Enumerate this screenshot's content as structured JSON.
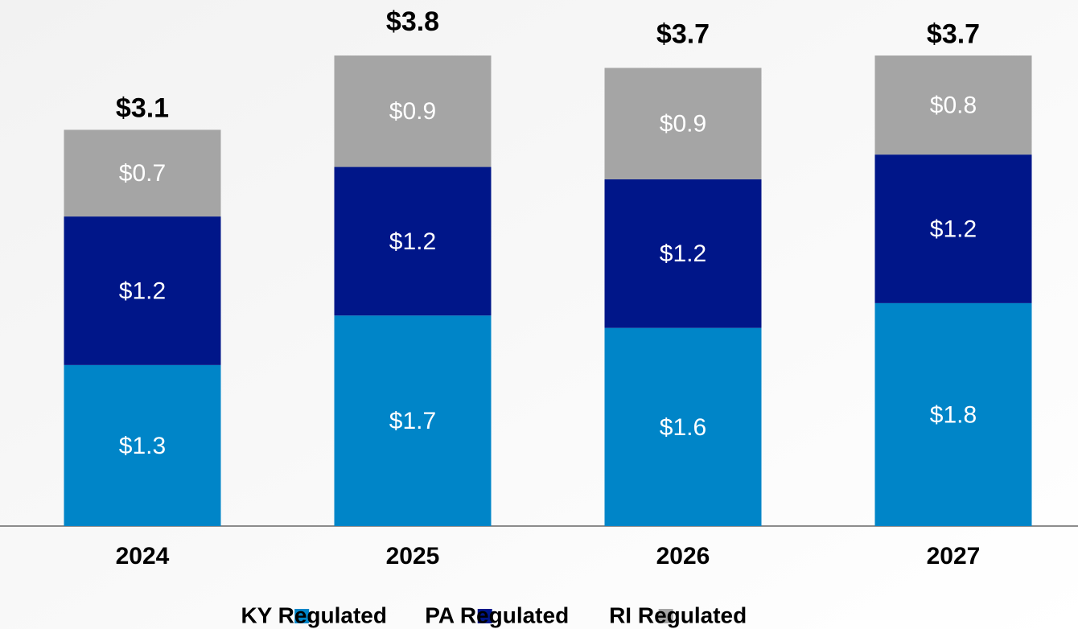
{
  "chart_data": {
    "type": "stacked-bar",
    "categories": [
      "2024",
      "2025",
      "2026",
      "2027"
    ],
    "series": [
      {
        "name": "KY Regulated",
        "color": "#0085c8",
        "values": [
          1.3,
          1.7,
          1.6,
          1.8
        ],
        "value_labels": [
          "$1.3",
          "$1.7",
          "$1.6",
          "$1.8"
        ]
      },
      {
        "name": "PA Regulated",
        "color": "#001689",
        "values": [
          1.2,
          1.2,
          1.2,
          1.2
        ],
        "value_labels": [
          "$1.2",
          "$1.2",
          "$1.2",
          "$1.2"
        ]
      },
      {
        "name": "RI Regulated",
        "color": "#a5a5a5",
        "values": [
          0.7,
          0.9,
          0.9,
          0.8
        ],
        "value_labels": [
          "$0.7",
          "$0.9",
          "$0.9",
          "$0.8"
        ]
      }
    ],
    "totals": [
      3.1,
      3.8,
      3.7,
      3.7
    ],
    "total_labels": [
      "$3.1",
      "$3.8",
      "$3.7",
      "$3.7"
    ],
    "legend": "bottom"
  }
}
